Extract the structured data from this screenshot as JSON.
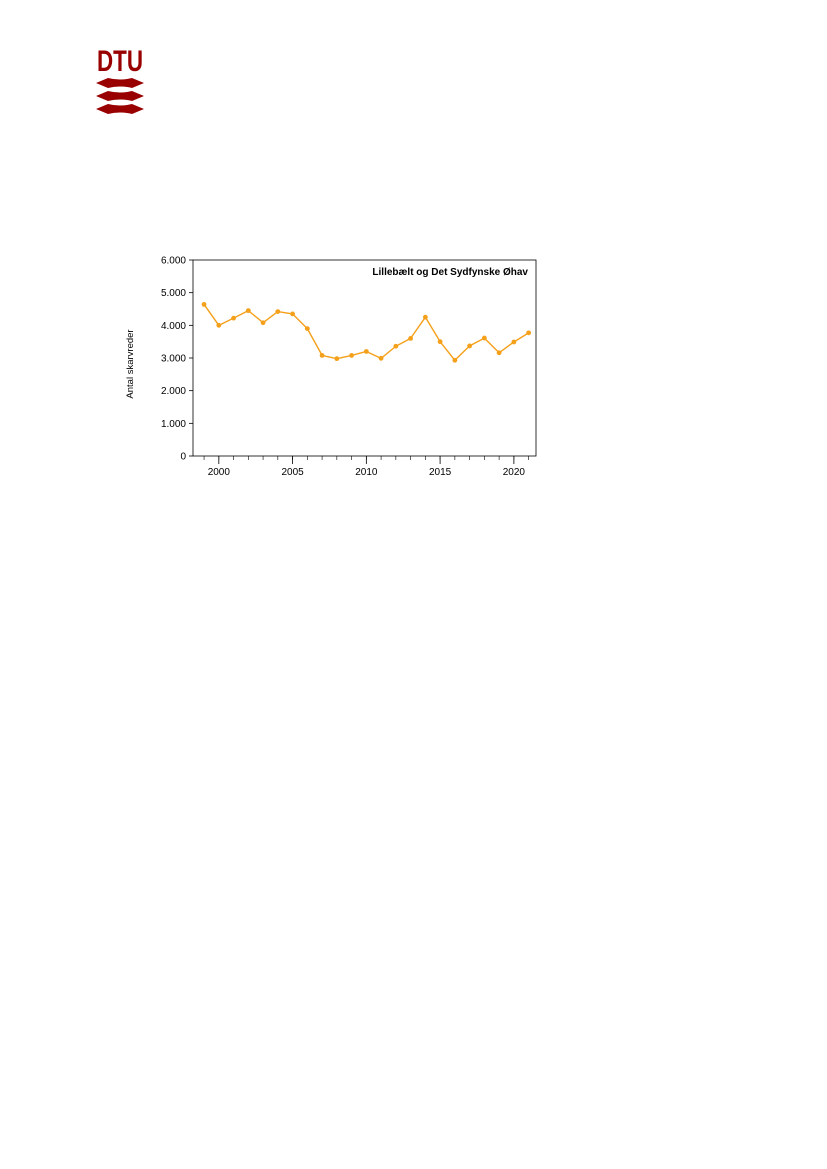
{
  "logo": {
    "text": "DTU",
    "color": "#990000"
  },
  "chart_data": {
    "type": "line",
    "title": "Lillebælt og Det Sydfynske Øhav",
    "xlabel": "",
    "ylabel": "Antal skarvreder",
    "x": [
      1999,
      2000,
      2001,
      2002,
      2003,
      2004,
      2005,
      2006,
      2007,
      2008,
      2009,
      2010,
      2011,
      2012,
      2013,
      2014,
      2015,
      2016,
      2017,
      2018,
      2019,
      2020,
      2021
    ],
    "values": [
      4640,
      4000,
      4220,
      4450,
      4080,
      4420,
      4350,
      3900,
      3080,
      2980,
      3080,
      3200,
      2990,
      3360,
      3600,
      4250,
      3500,
      2930,
      3370,
      3610,
      3160,
      3490,
      3770
    ],
    "xlim": [
      1998.25,
      2021.5
    ],
    "ylim": [
      0,
      6000
    ],
    "yticks": [
      0,
      1000,
      2000,
      3000,
      4000,
      5000,
      6000
    ],
    "ytick_labels": [
      "0",
      "1.000",
      "2.000",
      "3.000",
      "4.000",
      "5.000",
      "6.000"
    ],
    "xticks": [
      2000,
      2005,
      2010,
      2015,
      2020
    ],
    "xtick_labels": [
      "2000",
      "2005",
      "2010",
      "2015",
      "2020"
    ],
    "series_color": "#f5a01a",
    "grid": false,
    "title_placement": "top-right"
  }
}
